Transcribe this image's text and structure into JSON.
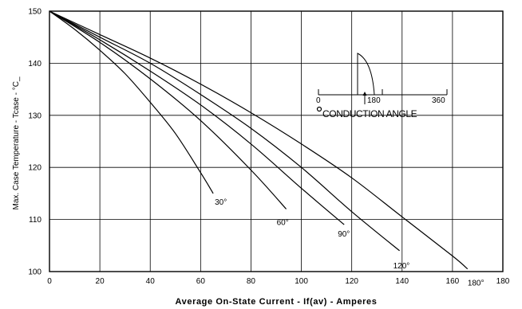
{
  "chart_data": {
    "type": "line",
    "xlabel": "Average On-State Current - If(av) - Amperes",
    "ylabel": "Max. Case Temperature - Tcase - °C_",
    "xlim": [
      0,
      180
    ],
    "ylim": [
      100,
      150
    ],
    "xticks": [
      0,
      20,
      40,
      60,
      80,
      100,
      120,
      140,
      160,
      180
    ],
    "yticks": [
      100,
      110,
      120,
      130,
      140,
      150
    ],
    "grid": true,
    "series": [
      {
        "name": "30°",
        "points": [
          [
            0,
            150
          ],
          [
            10,
            146.5
          ],
          [
            20,
            142.5
          ],
          [
            30,
            138
          ],
          [
            40,
            132.5
          ],
          [
            50,
            126.5
          ],
          [
            60,
            119
          ],
          [
            65,
            115
          ]
        ]
      },
      {
        "name": "60°",
        "points": [
          [
            0,
            150
          ],
          [
            20,
            144
          ],
          [
            40,
            137
          ],
          [
            60,
            129
          ],
          [
            80,
            119.5
          ],
          [
            94,
            112
          ]
        ]
      },
      {
        "name": "90°",
        "points": [
          [
            0,
            150
          ],
          [
            20,
            144.5
          ],
          [
            40,
            138.5
          ],
          [
            60,
            132
          ],
          [
            80,
            124.5
          ],
          [
            100,
            116
          ],
          [
            117,
            109
          ]
        ]
      },
      {
        "name": "120°",
        "points": [
          [
            0,
            150
          ],
          [
            20,
            145
          ],
          [
            40,
            140
          ],
          [
            60,
            134
          ],
          [
            80,
            127.5
          ],
          [
            100,
            120
          ],
          [
            120,
            111.5
          ],
          [
            139,
            104
          ]
        ]
      },
      {
        "name": "180°",
        "points": [
          [
            0,
            150
          ],
          [
            20,
            145.5
          ],
          [
            40,
            141
          ],
          [
            60,
            136
          ],
          [
            80,
            130.5
          ],
          [
            100,
            124.5
          ],
          [
            120,
            118
          ],
          [
            140,
            110.5
          ],
          [
            160,
            103
          ],
          [
            166,
            100.5
          ]
        ]
      }
    ],
    "inset": {
      "scale_labels": [
        "0",
        "180",
        "360"
      ],
      "caption": "CONDUCTION ANGLE"
    }
  }
}
